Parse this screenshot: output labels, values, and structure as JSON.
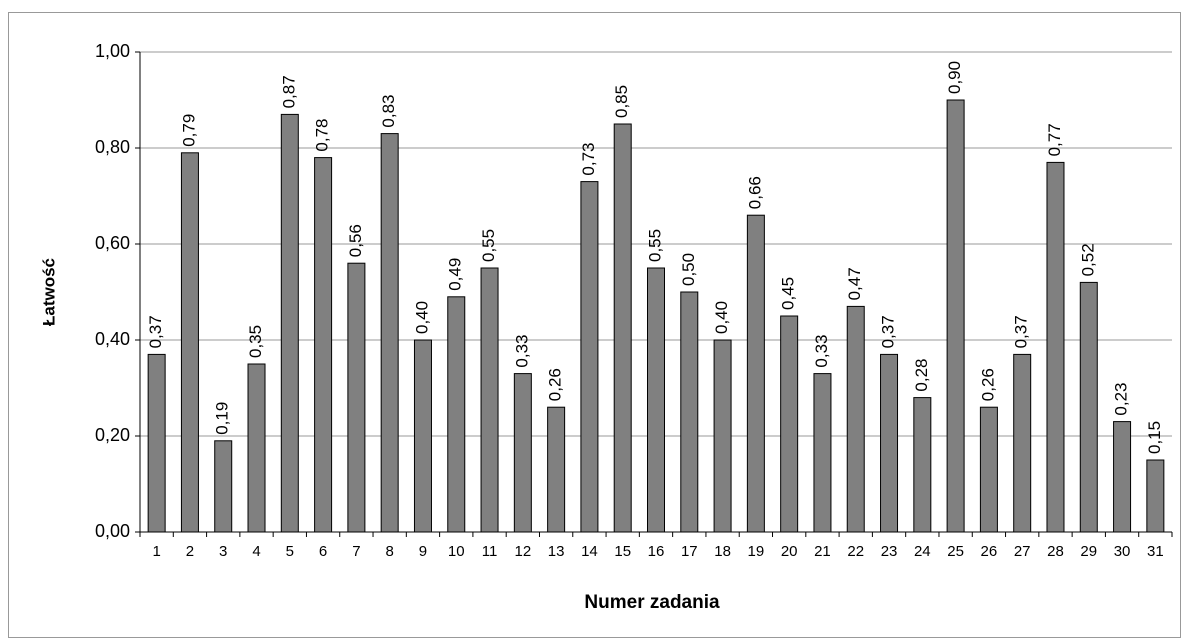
{
  "chart_data": {
    "type": "bar",
    "x_label": "Numer zadania",
    "y_label": "Łatwość",
    "categories": [
      "1",
      "2",
      "3",
      "4",
      "5",
      "6",
      "7",
      "8",
      "9",
      "10",
      "11",
      "12",
      "13",
      "14",
      "15",
      "16",
      "17",
      "18",
      "19",
      "20",
      "21",
      "22",
      "23",
      "24",
      "25",
      "26",
      "27",
      "28",
      "29",
      "30",
      "31"
    ],
    "values": [
      0.37,
      0.79,
      0.19,
      0.35,
      0.87,
      0.78,
      0.56,
      0.83,
      0.4,
      0.49,
      0.55,
      0.33,
      0.26,
      0.73,
      0.85,
      0.55,
      0.5,
      0.4,
      0.66,
      0.45,
      0.33,
      0.47,
      0.37,
      0.28,
      0.9,
      0.26,
      0.37,
      0.77,
      0.52,
      0.23,
      0.15
    ],
    "value_labels": [
      "0,37",
      "0,79",
      "0,19",
      "0,35",
      "0,87",
      "0,78",
      "0,56",
      "0,83",
      "0,40",
      "0,49",
      "0,55",
      "0,33",
      "0,26",
      "0,73",
      "0,85",
      "0,55",
      "0,50",
      "0,40",
      "0,66",
      "0,45",
      "0,33",
      "0,47",
      "0,37",
      "0,28",
      "0,90",
      "0,26",
      "0,37",
      "0,77",
      "0,52",
      "0,23",
      "0,15"
    ],
    "color": "#808080",
    "ylim": [
      0,
      1
    ],
    "yticks": [
      {
        "value": 0,
        "label": "0,00"
      },
      {
        "value": 0.2,
        "label": "0,20"
      },
      {
        "value": 0.4,
        "label": "0,40"
      },
      {
        "value": 0.6,
        "label": "0,60"
      },
      {
        "value": 0.8,
        "label": "0,80"
      },
      {
        "value": 1,
        "label": "1,00"
      }
    ],
    "grid": true
  }
}
